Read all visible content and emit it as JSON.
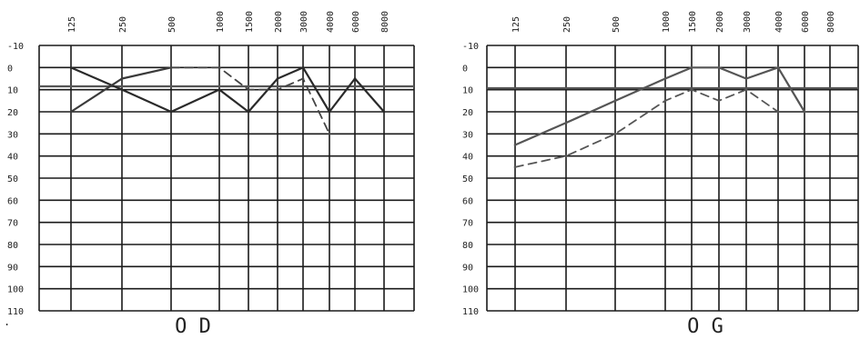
{
  "chart_data": [
    {
      "type": "line",
      "title": "",
      "ear_label": "O D",
      "x_ticks": [
        "125",
        "250",
        "500",
        "1000",
        "1500",
        "2000",
        "3000",
        "4000",
        "6000",
        "8000"
      ],
      "y_ticks": [
        "-10",
        "0",
        "10",
        "20",
        "30",
        "40",
        "50",
        "60",
        "70",
        "80",
        "90",
        "100",
        "110"
      ],
      "ylim": [
        -10,
        110
      ],
      "y_inverted": true,
      "grid": true,
      "series": [
        {
          "style": "solid",
          "color": "#2a2a2a",
          "points": [
            [
              "125",
              0
            ],
            [
              "250",
              10
            ],
            [
              "500",
              20
            ],
            [
              "1000",
              10
            ],
            [
              "1500",
              20
            ],
            [
              "2000",
              5
            ],
            [
              "3000",
              0
            ],
            [
              "4000",
              20
            ],
            [
              "6000",
              5
            ],
            [
              "8000",
              20
            ]
          ]
        },
        {
          "style": "solid",
          "color": "#3a3a3a",
          "points": [
            [
              "125",
              20
            ],
            [
              "250",
              5
            ],
            [
              "500",
              0
            ]
          ]
        },
        {
          "style": "dashed",
          "color": "#444444",
          "points": [
            [
              "500",
              0
            ],
            [
              "1000",
              0
            ],
            [
              "1500",
              10
            ],
            [
              "2000",
              10
            ],
            [
              "3000",
              5
            ],
            [
              "4000",
              30
            ]
          ]
        }
      ]
    },
    {
      "type": "line",
      "title": "",
      "ear_label": "O G",
      "x_ticks": [
        "125",
        "250",
        "500",
        "1000",
        "1500",
        "2000",
        "3000",
        "4000",
        "6000",
        "8000"
      ],
      "y_ticks": [
        "-10",
        "0",
        "10",
        "20",
        "30",
        "40",
        "50",
        "60",
        "70",
        "80",
        "90",
        "100",
        "110"
      ],
      "ylim": [
        -10,
        110
      ],
      "y_inverted": true,
      "grid": true,
      "series": [
        {
          "style": "solid",
          "color": "#555555",
          "points": [
            [
              "125",
              35
            ],
            [
              "250",
              25
            ],
            [
              "500",
              15
            ],
            [
              "1000",
              5
            ],
            [
              "1500",
              0
            ],
            [
              "2000",
              0
            ],
            [
              "3000",
              5
            ],
            [
              "4000",
              0
            ],
            [
              "6000",
              20
            ]
          ]
        },
        {
          "style": "dashed",
          "color": "#555555",
          "points": [
            [
              "125",
              45
            ],
            [
              "250",
              40
            ],
            [
              "500",
              30
            ],
            [
              "1000",
              15
            ],
            [
              "1500",
              10
            ],
            [
              "2000",
              15
            ],
            [
              "3000",
              10
            ],
            [
              "4000",
              20
            ]
          ]
        }
      ]
    }
  ]
}
